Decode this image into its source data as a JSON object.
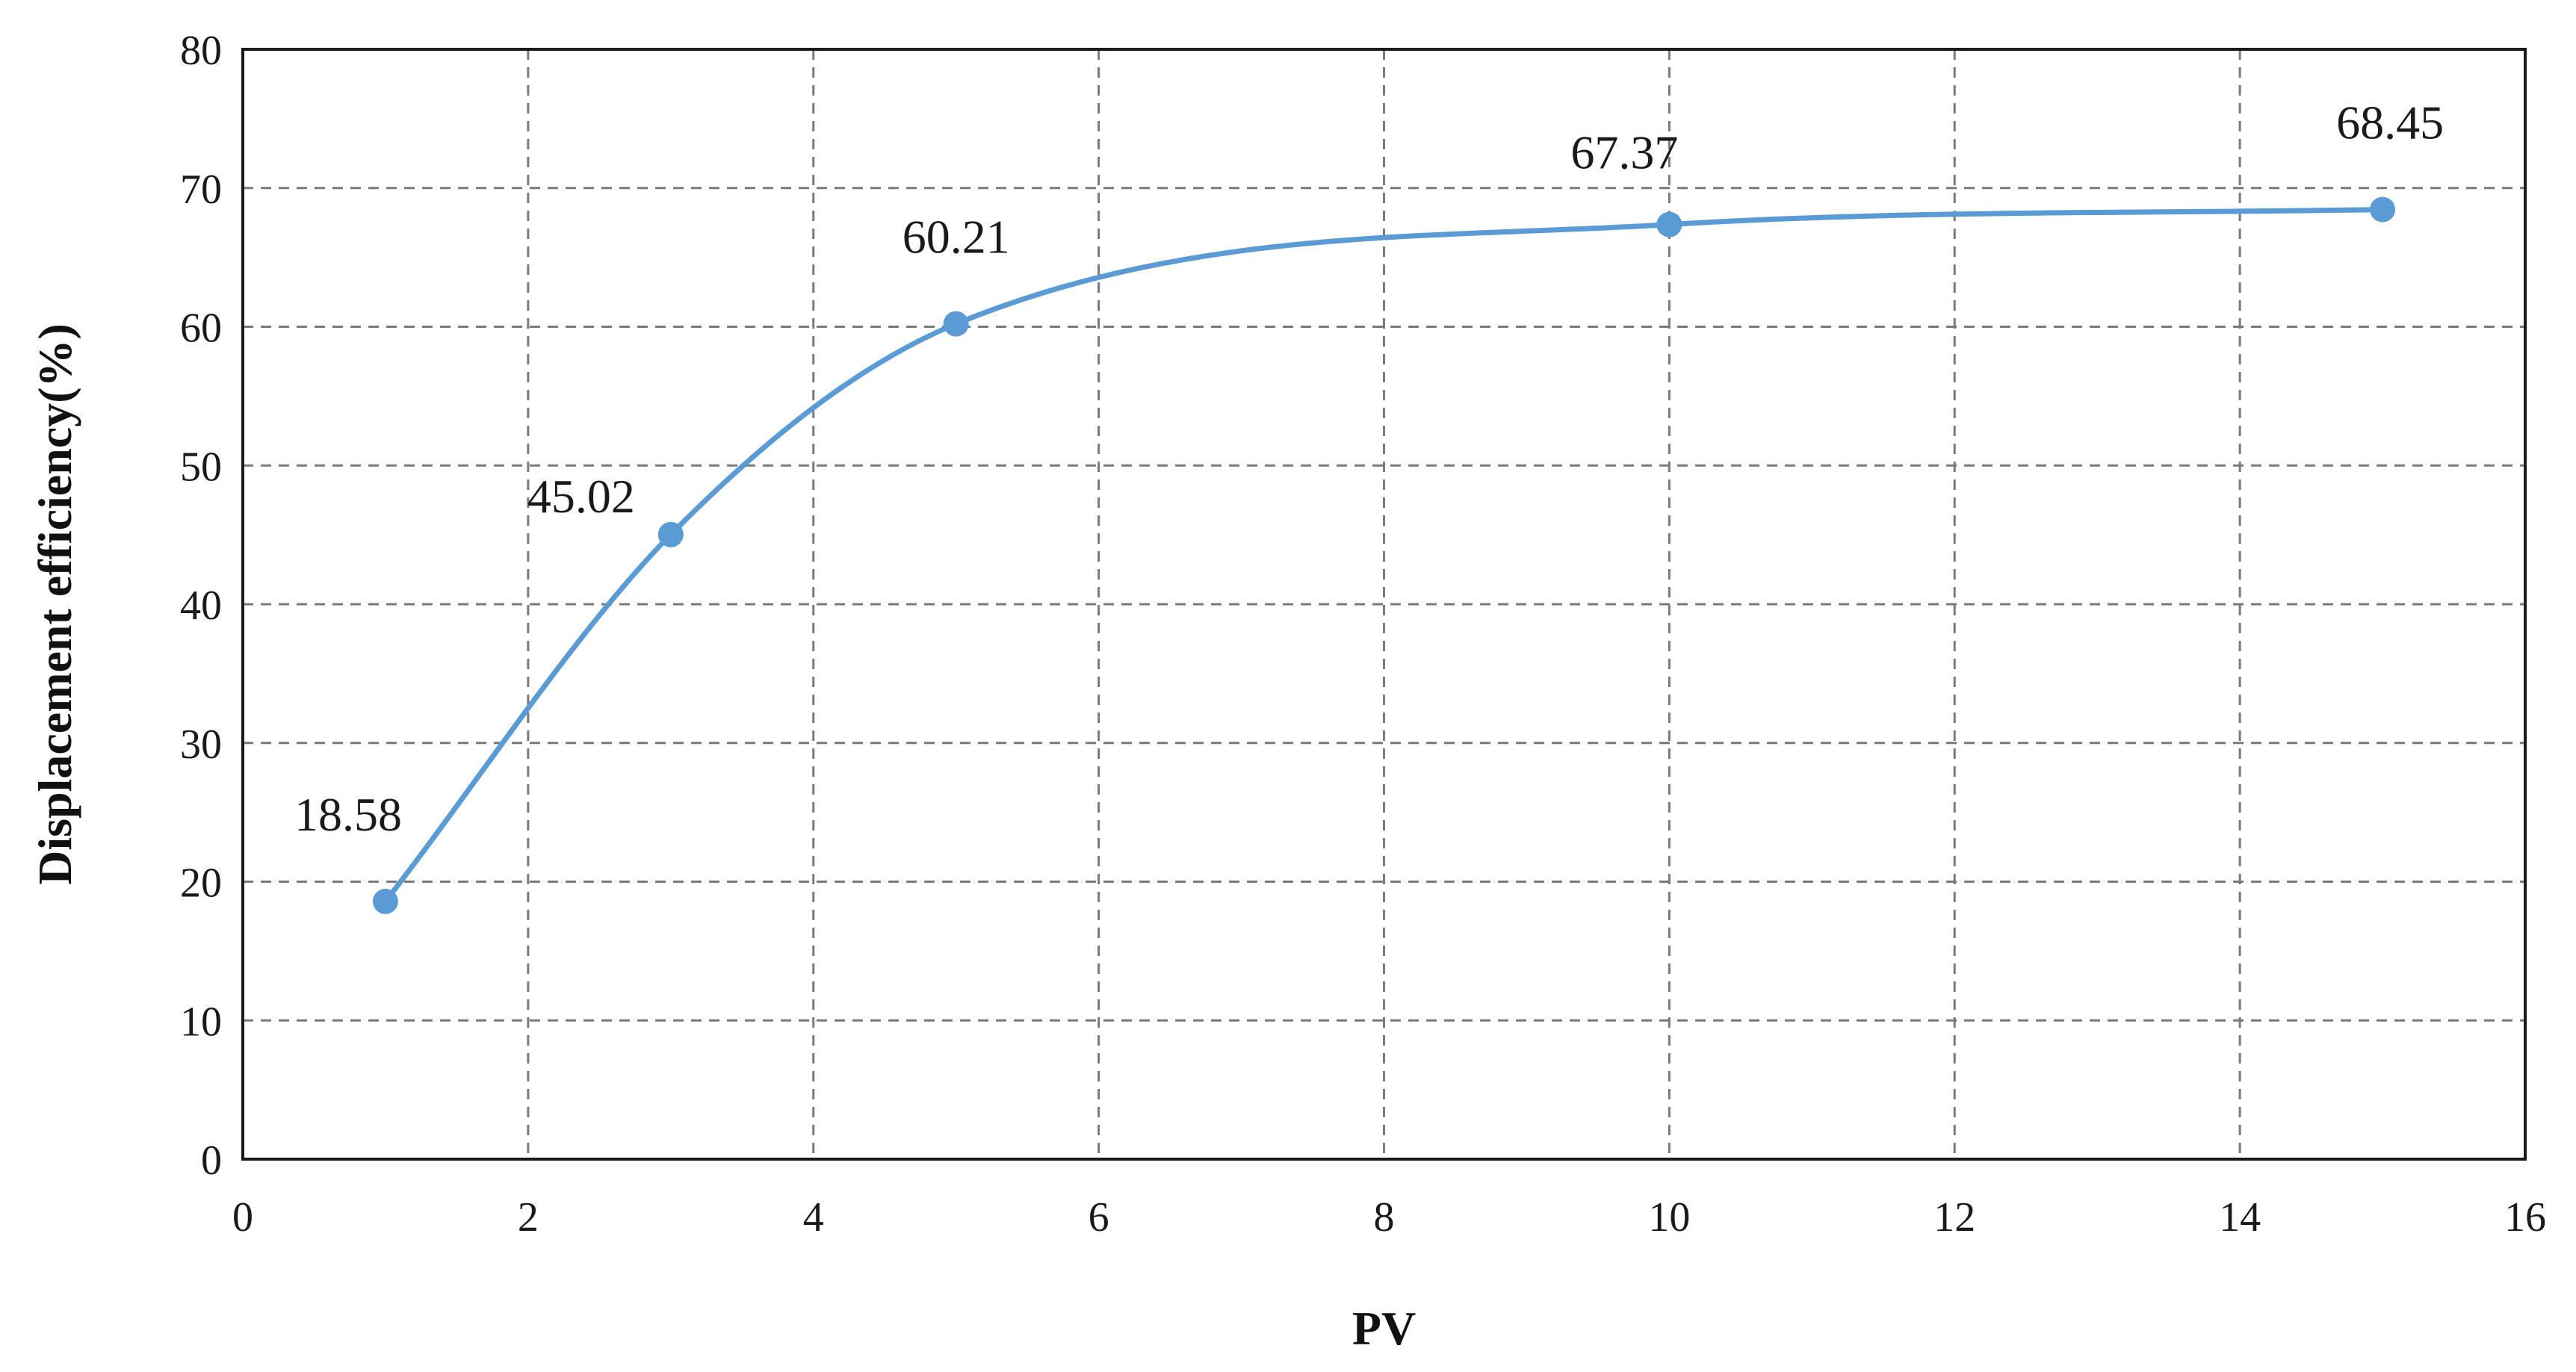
{
  "chart_data": {
    "type": "line",
    "title": "",
    "xlabel": "PV",
    "ylabel": "Displacement efficiency(%)",
    "xlim": [
      0,
      16
    ],
    "ylim": [
      0,
      80
    ],
    "xticks": [
      0,
      2,
      4,
      6,
      8,
      10,
      12,
      14,
      16
    ],
    "yticks": [
      0,
      10,
      20,
      30,
      40,
      50,
      60,
      70,
      80
    ],
    "grid": true,
    "grid_style": "dashed",
    "smooth": true,
    "series": [
      {
        "x": [
          1,
          3,
          5,
          10,
          15
        ],
        "values": [
          18.58,
          45.02,
          60.21,
          67.37,
          68.45
        ],
        "labels": [
          "18.58",
          "45.02",
          "60.21",
          "67.37",
          "68.45"
        ],
        "color": "#5b9bd5"
      }
    ]
  }
}
